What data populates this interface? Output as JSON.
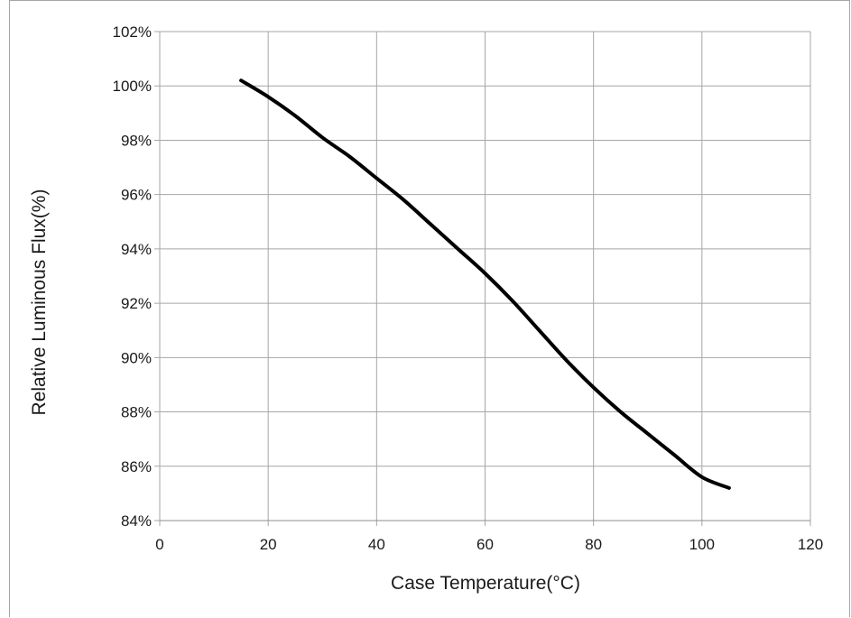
{
  "chart_data": {
    "type": "line",
    "title": "",
    "xlabel": "Case Temperature(°C)",
    "ylabel": "Relative  Luminous Flux(%)",
    "xlim": [
      0,
      120
    ],
    "ylim": [
      84,
      102
    ],
    "x_ticks": [
      0,
      20,
      40,
      60,
      80,
      100,
      120
    ],
    "y_ticks": [
      84,
      86,
      88,
      90,
      92,
      94,
      96,
      98,
      100,
      102
    ],
    "x_tick_labels": [
      "0",
      "20",
      "40",
      "60",
      "80",
      "100",
      "120"
    ],
    "y_tick_labels": [
      "84%",
      "86%",
      "88%",
      "90%",
      "92%",
      "94%",
      "96%",
      "98%",
      "100%",
      "102%"
    ],
    "grid": true,
    "series": [
      {
        "color": "#000000",
        "x": [
          15,
          20,
          25,
          30,
          35,
          40,
          45,
          50,
          55,
          60,
          65,
          70,
          75,
          80,
          85,
          90,
          95,
          100,
          105
        ],
        "y": [
          100.2,
          99.6,
          98.9,
          98.1,
          97.4,
          96.6,
          95.8,
          94.9,
          94.0,
          93.1,
          92.1,
          91.0,
          89.9,
          88.9,
          88.0,
          87.2,
          86.4,
          85.6,
          85.2
        ]
      }
    ]
  }
}
